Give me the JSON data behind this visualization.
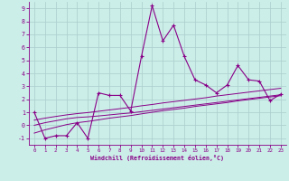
{
  "x_values": [
    0,
    1,
    2,
    3,
    4,
    5,
    6,
    7,
    8,
    9,
    10,
    11,
    12,
    13,
    14,
    15,
    16,
    17,
    18,
    19,
    20,
    21,
    22,
    23
  ],
  "y_main": [
    1.0,
    -1.0,
    -0.8,
    -0.8,
    0.2,
    -1.0,
    2.5,
    2.3,
    2.3,
    1.1,
    5.3,
    9.2,
    6.5,
    7.7,
    5.3,
    3.5,
    3.1,
    2.5,
    3.1,
    4.6,
    3.5,
    3.4,
    1.9,
    2.4
  ],
  "y_trend1": [
    0.0,
    0.2,
    0.35,
    0.5,
    0.6,
    0.65,
    0.72,
    0.8,
    0.88,
    0.95,
    1.05,
    1.15,
    1.25,
    1.35,
    1.45,
    1.55,
    1.65,
    1.75,
    1.85,
    1.95,
    2.05,
    2.15,
    2.25,
    2.35
  ],
  "y_trend2": [
    -0.6,
    -0.35,
    -0.15,
    0.05,
    0.2,
    0.3,
    0.42,
    0.55,
    0.65,
    0.75,
    0.88,
    1.0,
    1.12,
    1.22,
    1.32,
    1.45,
    1.55,
    1.65,
    1.75,
    1.88,
    1.98,
    2.08,
    2.18,
    2.28
  ],
  "y_trend3": [
    0.4,
    0.55,
    0.68,
    0.8,
    0.9,
    0.98,
    1.08,
    1.18,
    1.28,
    1.38,
    1.5,
    1.6,
    1.72,
    1.82,
    1.92,
    2.02,
    2.12,
    2.25,
    2.35,
    2.45,
    2.55,
    2.65,
    2.75,
    2.85
  ],
  "line_color": "#880088",
  "bg_color": "#cceee8",
  "grid_color": "#aacccc",
  "xlabel": "Windchill (Refroidissement éolien,°C)",
  "xlim": [
    -0.5,
    23.5
  ],
  "ylim": [
    -1.5,
    9.5
  ],
  "yticks": [
    -1,
    0,
    1,
    2,
    3,
    4,
    5,
    6,
    7,
    8,
    9
  ],
  "xticks": [
    0,
    1,
    2,
    3,
    4,
    5,
    6,
    7,
    8,
    9,
    10,
    11,
    12,
    13,
    14,
    15,
    16,
    17,
    18,
    19,
    20,
    21,
    22,
    23
  ]
}
